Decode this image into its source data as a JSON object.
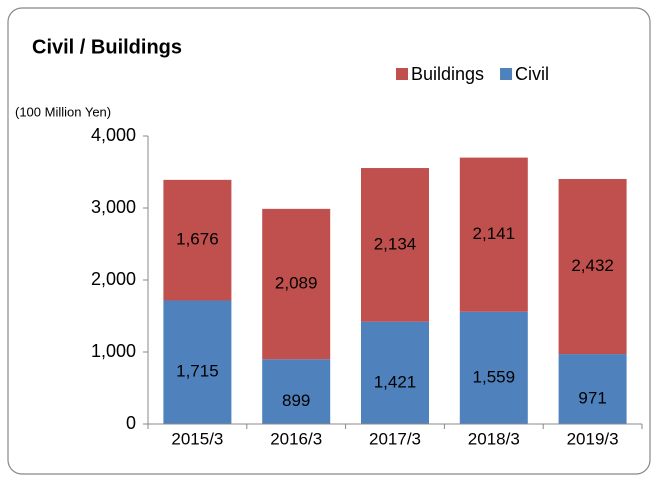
{
  "chart_data": {
    "type": "stacked_bar",
    "title": "Civil / Buildings",
    "y_label": "(100 Million Yen)",
    "categories": [
      "2015/3",
      "2016/3",
      "2017/3",
      "2018/3",
      "2019/3"
    ],
    "series": [
      {
        "name": "Civil",
        "color": "#4f81bd",
        "values": [
          1715,
          899,
          1421,
          1559,
          971
        ],
        "value_labels": [
          "1,715",
          "899",
          "1,421",
          "1,559",
          "971"
        ]
      },
      {
        "name": "Buildings",
        "color": "#c0504d",
        "values": [
          1676,
          2089,
          2134,
          2141,
          2432
        ],
        "value_labels": [
          "1,676",
          "2,089",
          "2,134",
          "2,141",
          "2,432"
        ]
      }
    ],
    "ylim": [
      0,
      4000
    ],
    "yticks": [
      0,
      {
        "value": 1000,
        "label": "1,000"
      },
      {
        "value": 2000,
        "label": "2,000"
      },
      {
        "value": 3000,
        "label": "3,000"
      },
      {
        "value": 4000,
        "label": "4,000"
      }
    ],
    "legend": "top-right"
  }
}
